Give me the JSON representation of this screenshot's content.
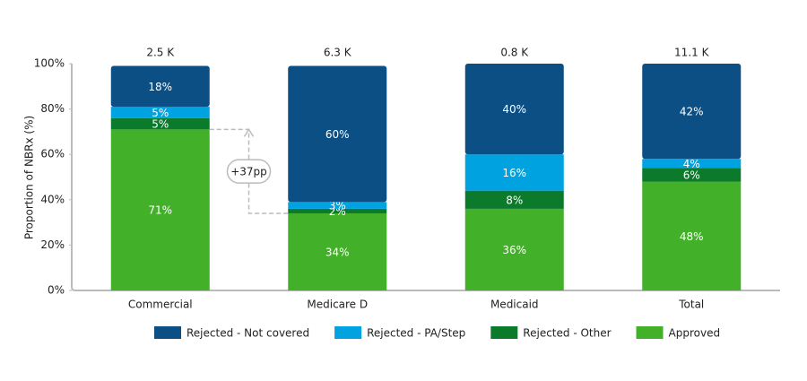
{
  "chart_data": {
    "type": "stacked_bar",
    "y_label": "Proportion of NBRx (%)",
    "categories": [
      "Commercial",
      "Medicare D",
      "Medicaid",
      "Total"
    ],
    "totals": {
      "values": [
        2500,
        6300,
        800,
        11100
      ],
      "value_labels": [
        "2.5 K",
        "6.3 K",
        "0.8 K",
        "11.1 K"
      ]
    },
    "series": [
      {
        "name": "Rejected - Not covered",
        "color": "#0b4f85",
        "values": [
          18,
          60,
          40,
          42
        ],
        "value_labels": [
          "18%",
          "60%",
          "40%",
          "42%"
        ]
      },
      {
        "name": "Rejected - PA/Step",
        "color": "#00a3e0",
        "values": [
          5,
          3,
          16,
          4
        ],
        "value_labels": [
          "5%",
          "3%",
          "16%",
          "4%"
        ]
      },
      {
        "name": "Rejected - Other",
        "color": "#0b7a2a",
        "values": [
          5,
          2,
          8,
          6
        ],
        "value_labels": [
          "5%",
          "2%",
          "8%",
          "6%"
        ]
      },
      {
        "name": "Approved",
        "color": "#43b02a",
        "values": [
          71,
          34,
          36,
          48
        ],
        "value_labels": [
          "71%",
          "34%",
          "36%",
          "48%"
        ]
      }
    ],
    "annotation": "+37pp",
    "ylim": [
      0,
      100
    ],
    "yticks": [
      {
        "value": 0,
        "label": "0%"
      },
      {
        "value": 20,
        "label": "20%"
      },
      {
        "value": 40,
        "label": "40%"
      },
      {
        "value": 60,
        "label": "60%"
      },
      {
        "value": 80,
        "label": "80%"
      },
      {
        "value": 100,
        "label": "100%"
      }
    ],
    "legend": "bottom"
  }
}
